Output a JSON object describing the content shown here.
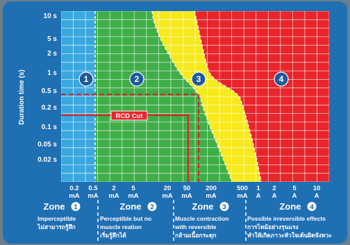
{
  "chart_data": {
    "type": "area",
    "title": "",
    "ylabel": "Duration time (s)",
    "xlabel": "",
    "y_scale": "log",
    "y_ticks": [
      "10 s",
      "5 s",
      "2 s",
      "1 s",
      "0.5 s",
      "0.2 s",
      "0.1 s",
      "0.05 s",
      "0.02 s"
    ],
    "x_ticks": [
      [
        "0.2",
        "mA"
      ],
      [
        "0.5",
        "mA"
      ],
      [
        "2",
        "mA"
      ],
      [
        "5",
        "mA"
      ],
      [
        "20",
        "mA"
      ],
      [
        "50",
        "mA"
      ],
      [
        "200",
        "mA"
      ],
      [
        "500",
        "mA"
      ],
      [
        "1",
        "A"
      ],
      [
        "2",
        "A"
      ],
      [
        "5",
        "A"
      ],
      [
        "10",
        "A"
      ]
    ],
    "zone_badges": [
      "1",
      "2",
      "3",
      "4"
    ],
    "rcd_label": "RCD Cut",
    "zones": [
      {
        "title": "Zone",
        "number": "1",
        "color": "#3aa8df",
        "desc": [
          "Imperceptible",
          "ไม่สามารถรู้สึก"
        ]
      },
      {
        "title": "Zone",
        "number": "2",
        "color": "#3fae47",
        "desc": [
          "Perceptible but no",
          "muscle reation",
          "เริ่มรู้สึกได้"
        ]
      },
      {
        "title": "Zone",
        "number": "3",
        "color": "#f7e91c",
        "desc": [
          "Muscle contraction",
          "with reversible",
          "กล้ามเนื้อกระตุก"
        ]
      },
      {
        "title": "Zone",
        "number": "4",
        "color": "#e8252b",
        "desc": [
          "Possible irreversible effects",
          "การไหม้อย่างรุนแรง",
          "ทำให้เกิดภาวะหัวใจเต้นผิดจังหวะ"
        ]
      }
    ],
    "colors": {
      "background": "#1f6fb3",
      "grid": "#ffffff",
      "rcd_line": "#d9242a",
      "rcd_box": "#e8252b",
      "badge_fill": "#1f5b9c"
    }
  }
}
